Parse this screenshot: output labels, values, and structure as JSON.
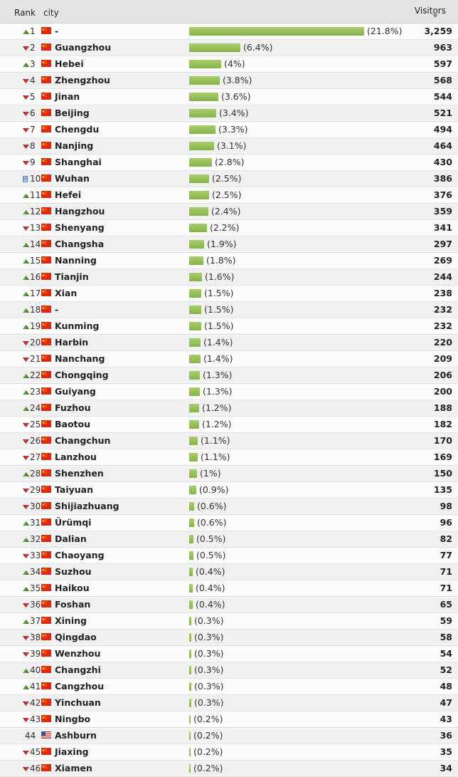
{
  "header": {
    "rank": "Rank",
    "city": "city",
    "visitors": "Visitors"
  },
  "colors": {
    "bar": "#94bf57",
    "up": "#5aa63c",
    "down": "#c8322b",
    "flag_cn": "#de2910",
    "flag_cn_star": "#ffde00"
  },
  "rows": [
    {
      "rank": "1",
      "trend": "up",
      "flag": "cn",
      "city": "-",
      "pct": "(21.8%)",
      "share": 21.8,
      "visitors": "3,259"
    },
    {
      "rank": "2",
      "trend": "down",
      "flag": "cn",
      "city": "Guangzhou",
      "pct": "(6.4%)",
      "share": 6.4,
      "visitors": "963"
    },
    {
      "rank": "3",
      "trend": "up",
      "flag": "cn",
      "city": "Hebei",
      "pct": "(4%)",
      "share": 4.0,
      "visitors": "597"
    },
    {
      "rank": "4",
      "trend": "down",
      "flag": "cn",
      "city": "Zhengzhou",
      "pct": "(3.8%)",
      "share": 3.8,
      "visitors": "568"
    },
    {
      "rank": "5",
      "trend": "down",
      "flag": "cn",
      "city": "Jinan",
      "pct": "(3.6%)",
      "share": 3.6,
      "visitors": "544"
    },
    {
      "rank": "6",
      "trend": "down",
      "flag": "cn",
      "city": "Beijing",
      "pct": "(3.4%)",
      "share": 3.4,
      "visitors": "521"
    },
    {
      "rank": "7",
      "trend": "down",
      "flag": "cn",
      "city": "Chengdu",
      "pct": "(3.3%)",
      "share": 3.3,
      "visitors": "494"
    },
    {
      "rank": "8",
      "trend": "down",
      "flag": "cn",
      "city": "Nanjing",
      "pct": "(3.1%)",
      "share": 3.1,
      "visitors": "464"
    },
    {
      "rank": "9",
      "trend": "down",
      "flag": "cn",
      "city": "Shanghai",
      "pct": "(2.8%)",
      "share": 2.8,
      "visitors": "430"
    },
    {
      "rank": "10",
      "trend": "same",
      "flag": "cn",
      "city": "Wuhan",
      "pct": "(2.5%)",
      "share": 2.5,
      "visitors": "386"
    },
    {
      "rank": "11",
      "trend": "up",
      "flag": "cn",
      "city": "Hefei",
      "pct": "(2.5%)",
      "share": 2.5,
      "visitors": "376"
    },
    {
      "rank": "12",
      "trend": "up",
      "flag": "cn",
      "city": "Hangzhou",
      "pct": "(2.4%)",
      "share": 2.4,
      "visitors": "359"
    },
    {
      "rank": "13",
      "trend": "down",
      "flag": "cn",
      "city": "Shenyang",
      "pct": "(2.2%)",
      "share": 2.2,
      "visitors": "341"
    },
    {
      "rank": "14",
      "trend": "up",
      "flag": "cn",
      "city": "Changsha",
      "pct": "(1.9%)",
      "share": 1.9,
      "visitors": "297"
    },
    {
      "rank": "15",
      "trend": "up",
      "flag": "cn",
      "city": "Nanning",
      "pct": "(1.8%)",
      "share": 1.8,
      "visitors": "269"
    },
    {
      "rank": "16",
      "trend": "up",
      "flag": "cn",
      "city": "Tianjin",
      "pct": "(1.6%)",
      "share": 1.6,
      "visitors": "244"
    },
    {
      "rank": "17",
      "trend": "up",
      "flag": "cn",
      "city": "Xian",
      "pct": "(1.5%)",
      "share": 1.5,
      "visitors": "238"
    },
    {
      "rank": "18",
      "trend": "up",
      "flag": "cn",
      "city": "-",
      "pct": "(1.5%)",
      "share": 1.5,
      "visitors": "232"
    },
    {
      "rank": "19",
      "trend": "up",
      "flag": "cn",
      "city": "Kunming",
      "pct": "(1.5%)",
      "share": 1.5,
      "visitors": "232"
    },
    {
      "rank": "20",
      "trend": "down",
      "flag": "cn",
      "city": "Harbin",
      "pct": "(1.4%)",
      "share": 1.4,
      "visitors": "220"
    },
    {
      "rank": "21",
      "trend": "down",
      "flag": "cn",
      "city": "Nanchang",
      "pct": "(1.4%)",
      "share": 1.4,
      "visitors": "209"
    },
    {
      "rank": "22",
      "trend": "up",
      "flag": "cn",
      "city": "Chongqing",
      "pct": "(1.3%)",
      "share": 1.3,
      "visitors": "206"
    },
    {
      "rank": "23",
      "trend": "up",
      "flag": "cn",
      "city": "Guiyang",
      "pct": "(1.3%)",
      "share": 1.3,
      "visitors": "200"
    },
    {
      "rank": "24",
      "trend": "up",
      "flag": "cn",
      "city": "Fuzhou",
      "pct": "(1.2%)",
      "share": 1.2,
      "visitors": "188"
    },
    {
      "rank": "25",
      "trend": "down",
      "flag": "cn",
      "city": "Baotou",
      "pct": "(1.2%)",
      "share": 1.2,
      "visitors": "182"
    },
    {
      "rank": "26",
      "trend": "down",
      "flag": "cn",
      "city": "Changchun",
      "pct": "(1.1%)",
      "share": 1.1,
      "visitors": "170"
    },
    {
      "rank": "27",
      "trend": "down",
      "flag": "cn",
      "city": "Lanzhou",
      "pct": "(1.1%)",
      "share": 1.1,
      "visitors": "169"
    },
    {
      "rank": "28",
      "trend": "up",
      "flag": "cn",
      "city": "Shenzhen",
      "pct": "(1%)",
      "share": 1.0,
      "visitors": "150"
    },
    {
      "rank": "29",
      "trend": "down",
      "flag": "cn",
      "city": "Taiyuan",
      "pct": "(0.9%)",
      "share": 0.9,
      "visitors": "135"
    },
    {
      "rank": "30",
      "trend": "down",
      "flag": "cn",
      "city": "Shijiazhuang",
      "pct": "(0.6%)",
      "share": 0.6,
      "visitors": "98"
    },
    {
      "rank": "31",
      "trend": "up",
      "flag": "cn",
      "city": "Ürümqi",
      "pct": "(0.6%)",
      "share": 0.6,
      "visitors": "96"
    },
    {
      "rank": "32",
      "trend": "up",
      "flag": "cn",
      "city": "Dalian",
      "pct": "(0.5%)",
      "share": 0.5,
      "visitors": "82"
    },
    {
      "rank": "33",
      "trend": "down",
      "flag": "cn",
      "city": "Chaoyang",
      "pct": "(0.5%)",
      "share": 0.5,
      "visitors": "77"
    },
    {
      "rank": "34",
      "trend": "up",
      "flag": "cn",
      "city": "Suzhou",
      "pct": "(0.4%)",
      "share": 0.4,
      "visitors": "71"
    },
    {
      "rank": "35",
      "trend": "up",
      "flag": "cn",
      "city": "Haikou",
      "pct": "(0.4%)",
      "share": 0.4,
      "visitors": "71"
    },
    {
      "rank": "36",
      "trend": "down",
      "flag": "cn",
      "city": "Foshan",
      "pct": "(0.4%)",
      "share": 0.4,
      "visitors": "65"
    },
    {
      "rank": "37",
      "trend": "up",
      "flag": "cn",
      "city": "Xining",
      "pct": "(0.3%)",
      "share": 0.3,
      "visitors": "59"
    },
    {
      "rank": "38",
      "trend": "down",
      "flag": "cn",
      "city": "Qingdao",
      "pct": "(0.3%)",
      "share": 0.3,
      "visitors": "58"
    },
    {
      "rank": "39",
      "trend": "down",
      "flag": "cn",
      "city": "Wenzhou",
      "pct": "(0.3%)",
      "share": 0.3,
      "visitors": "54"
    },
    {
      "rank": "40",
      "trend": "up",
      "flag": "cn",
      "city": "Changzhi",
      "pct": "(0.3%)",
      "share": 0.3,
      "visitors": "52"
    },
    {
      "rank": "41",
      "trend": "up",
      "flag": "cn",
      "city": "Cangzhou",
      "pct": "(0.3%)",
      "share": 0.3,
      "visitors": "48"
    },
    {
      "rank": "42",
      "trend": "down",
      "flag": "cn",
      "city": "Yinchuan",
      "pct": "(0.3%)",
      "share": 0.3,
      "visitors": "47"
    },
    {
      "rank": "43",
      "trend": "down",
      "flag": "cn",
      "city": "Ningbo",
      "pct": "(0.2%)",
      "share": 0.2,
      "visitors": "43"
    },
    {
      "rank": "44",
      "trend": "none",
      "flag": "us",
      "city": "Ashburn",
      "pct": "(0.2%)",
      "share": 0.2,
      "visitors": "36"
    },
    {
      "rank": "45",
      "trend": "down",
      "flag": "cn",
      "city": "Jiaxing",
      "pct": "(0.2%)",
      "share": 0.2,
      "visitors": "35"
    },
    {
      "rank": "46",
      "trend": "down",
      "flag": "cn",
      "city": "Xiamen",
      "pct": "(0.2%)",
      "share": 0.2,
      "visitors": "34"
    }
  ]
}
